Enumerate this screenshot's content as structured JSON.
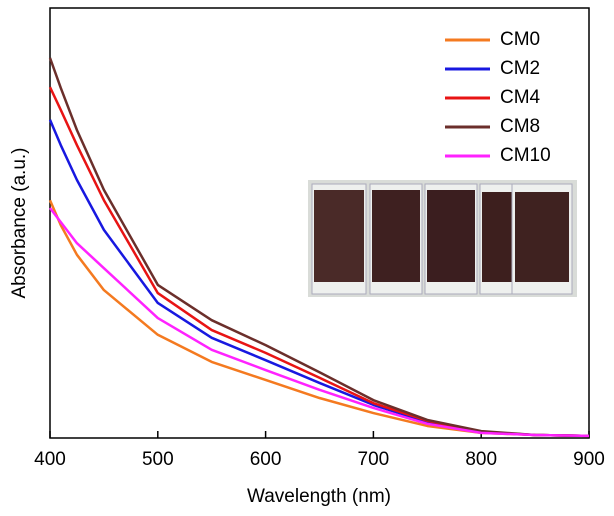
{
  "chart_data": {
    "type": "line",
    "xlabel": "Wavelength (nm)",
    "ylabel": "Absorbance (a.u.)",
    "x": [
      400,
      410,
      425,
      450,
      500,
      550,
      600,
      650,
      700,
      750,
      800,
      850,
      900
    ],
    "xlim": [
      400,
      900
    ],
    "xticks": [
      400,
      500,
      600,
      700,
      800,
      900
    ],
    "ylim": [
      0,
      1
    ],
    "legend": "upper right",
    "series": [
      {
        "name": "CM0",
        "color": "#f47a20",
        "values": [
          0.553,
          0.495,
          0.426,
          0.344,
          0.24,
          0.177,
          0.135,
          0.093,
          0.058,
          0.028,
          0.012,
          0.007,
          0.005
        ]
      },
      {
        "name": "CM2",
        "color": "#1818e0",
        "values": [
          0.74,
          0.681,
          0.6,
          0.484,
          0.314,
          0.233,
          0.181,
          0.128,
          0.077,
          0.037,
          0.014,
          0.007,
          0.005
        ]
      },
      {
        "name": "CM4",
        "color": "#e81414",
        "values": [
          0.816,
          0.763,
          0.681,
          0.553,
          0.337,
          0.251,
          0.198,
          0.14,
          0.081,
          0.04,
          0.014,
          0.007,
          0.005
        ]
      },
      {
        "name": "CM8",
        "color": "#6b2f2b",
        "values": [
          0.884,
          0.814,
          0.716,
          0.577,
          0.356,
          0.274,
          0.216,
          0.153,
          0.088,
          0.042,
          0.016,
          0.007,
          0.005
        ]
      },
      {
        "name": "CM10",
        "color": "#ff22ff",
        "values": [
          0.535,
          0.502,
          0.453,
          0.395,
          0.279,
          0.205,
          0.158,
          0.112,
          0.07,
          0.033,
          0.012,
          0.007,
          0.005
        ]
      }
    ]
  }
}
